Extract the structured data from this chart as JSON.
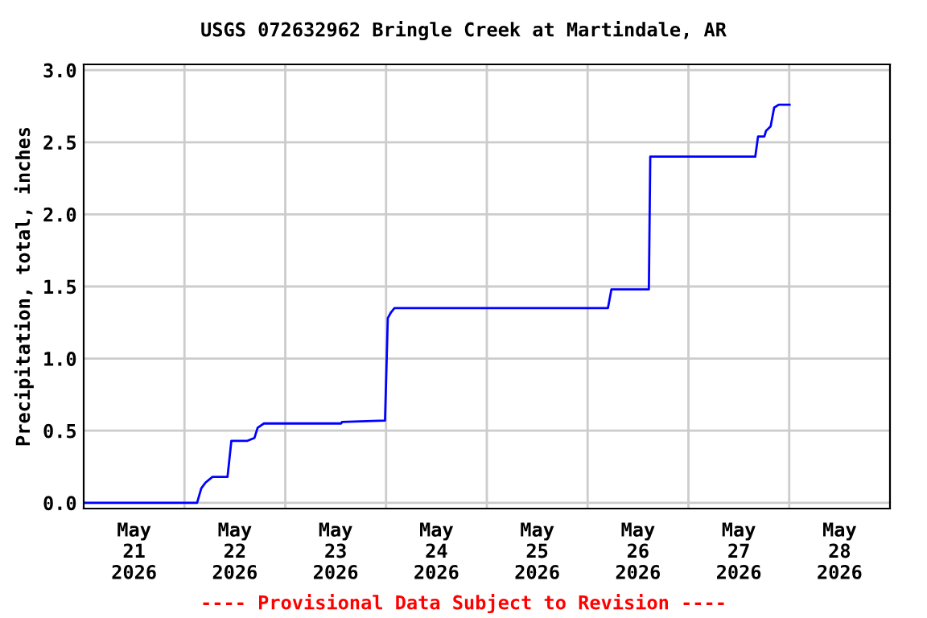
{
  "chart_data": {
    "type": "line",
    "title": "USGS 072632962 Bringle Creek at Martindale, AR",
    "ylabel": "Precipitation, total, inches",
    "annotations": [
      "---- Provisional Data Subject to Revision ----"
    ],
    "x": [
      "2026-05-21T00:00",
      "2026-05-22T03:00",
      "2026-05-22T04:00",
      "2026-05-22T05:00",
      "2026-05-22T06:40",
      "2026-05-22T10:15",
      "2026-05-22T11:10",
      "2026-05-22T15:00",
      "2026-05-22T16:40",
      "2026-05-22T17:25",
      "2026-05-22T18:55",
      "2026-05-23T13:20",
      "2026-05-23T13:30",
      "2026-05-23T23:45",
      "2026-05-24T00:25",
      "2026-05-24T01:10",
      "2026-05-24T02:00",
      "2026-05-26T04:50",
      "2026-05-26T05:40",
      "2026-05-26T14:35",
      "2026-05-26T14:55",
      "2026-05-27T15:55",
      "2026-05-27T16:35",
      "2026-05-27T18:05",
      "2026-05-27T18:30",
      "2026-05-27T19:35",
      "2026-05-27T20:25",
      "2026-05-27T21:30",
      "2026-05-28T00:05"
    ],
    "series": [
      {
        "color": "#0000ff",
        "values": [
          0,
          0,
          0.1,
          0.14,
          0.18,
          0.18,
          0.43,
          0.43,
          0.45,
          0.52,
          0.55,
          0.55,
          0.56,
          0.57,
          1.28,
          1.32,
          1.35,
          1.35,
          1.48,
          1.48,
          2.4,
          2.4,
          2.54,
          2.54,
          2.58,
          2.61,
          2.74,
          2.76,
          2.76
        ]
      }
    ],
    "xlim": [
      "2026-05-21T00:00",
      "2026-05-29T00:00"
    ],
    "xticks": [
      {
        "value": "2026-05-22T00:00",
        "label": null
      },
      {
        "value": "2026-05-23T00:00",
        "label": null
      },
      {
        "value": "2026-05-24T00:00",
        "label": null
      },
      {
        "value": "2026-05-25T00:00",
        "label": null
      },
      {
        "value": "2026-05-26T00:00",
        "label": null
      },
      {
        "value": "2026-05-27T00:00",
        "label": null
      },
      {
        "value": "2026-05-28T00:00",
        "label": null
      },
      {
        "value": "2026-05-21T12:00",
        "label": "May\n21\n2026"
      },
      {
        "value": "2026-05-22T12:00",
        "label": "May\n22\n2026"
      },
      {
        "value": "2026-05-23T12:00",
        "label": "May\n23\n2026"
      },
      {
        "value": "2026-05-24T12:00",
        "label": "May\n24\n2026"
      },
      {
        "value": "2026-05-25T12:00",
        "label": "May\n25\n2026"
      },
      {
        "value": "2026-05-26T12:00",
        "label": "May\n26\n2026"
      },
      {
        "value": "2026-05-27T12:00",
        "label": "May\n27\n2026"
      },
      {
        "value": "2026-05-28T12:00",
        "label": "May\n28\n2026"
      }
    ],
    "ylim": [
      -0.04,
      3.04
    ],
    "yticks": [
      {
        "value": 0,
        "label": "0.0"
      },
      {
        "value": 0.5,
        "label": "0.5"
      },
      {
        "value": 1,
        "label": "1.0"
      },
      {
        "value": 1.5,
        "label": "1.5"
      },
      {
        "value": 2,
        "label": "2.0"
      },
      {
        "value": 2.5,
        "label": "2.5"
      },
      {
        "value": 3,
        "label": "3.0"
      }
    ],
    "grid": true
  }
}
